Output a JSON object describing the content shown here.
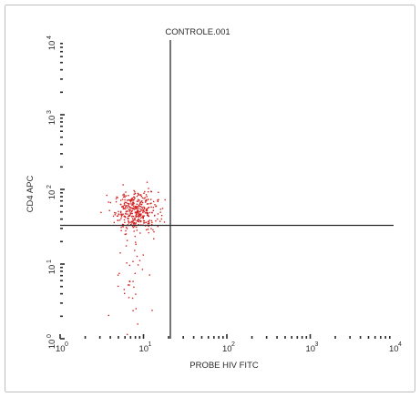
{
  "chart_data": {
    "type": "scatter",
    "title": "CONTROLE.001",
    "xlabel": "PROBE HIV FITC",
    "ylabel": "CD4 APC",
    "x_scale": "log",
    "y_scale": "log",
    "xlim": [
      1,
      10000
    ],
    "ylim": [
      1,
      10000
    ],
    "x_ticks": [
      {
        "value": 1,
        "base": "10",
        "exp": "0"
      },
      {
        "value": 10,
        "base": "10",
        "exp": "1"
      },
      {
        "value": 100,
        "base": "10",
        "exp": "2"
      },
      {
        "value": 1000,
        "base": "10",
        "exp": "3"
      },
      {
        "value": 10000,
        "base": "10",
        "exp": "4"
      }
    ],
    "y_ticks": [
      {
        "value": 1,
        "base": "10",
        "exp": "0"
      },
      {
        "value": 10,
        "base": "10",
        "exp": "1"
      },
      {
        "value": 100,
        "base": "10",
        "exp": "2"
      },
      {
        "value": 1000,
        "base": "10",
        "exp": "3"
      },
      {
        "value": 10000,
        "base": "10",
        "exp": "4"
      }
    ],
    "quadrant_gate": {
      "x": 21,
      "y": 33
    },
    "point_color": "#d42020",
    "axis_color": "#2a2a2a",
    "populations": [
      {
        "center_x": 8.2,
        "center_y": 51,
        "spread_log_x": 0.13,
        "spread_log_y": 0.13,
        "count": 380
      },
      {
        "center_x": 6.8,
        "center_y": 8,
        "spread_log_x": 0.1,
        "spread_log_y": 0.45,
        "count": 45
      }
    ],
    "grid": false,
    "legend": "none"
  }
}
